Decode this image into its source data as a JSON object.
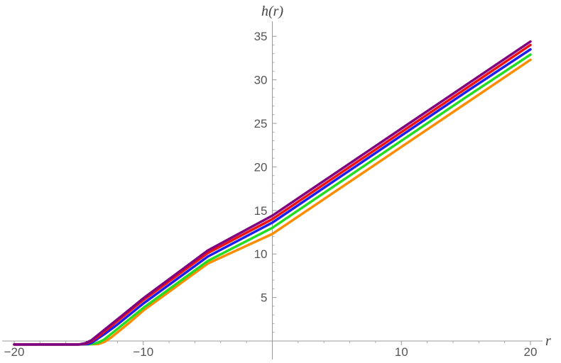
{
  "chart_data": {
    "type": "line",
    "title": "",
    "xlabel": "r",
    "ylabel": "h(r)",
    "xlim": [
      -20,
      20
    ],
    "ylim": [
      -0.5,
      36
    ],
    "x_ticks": [
      -20,
      -10,
      10,
      20
    ],
    "x_tick_labels": [
      "−20",
      "−10",
      "10",
      "20"
    ],
    "y_ticks": [
      5,
      10,
      15,
      20,
      25,
      30,
      35
    ],
    "y_tick_labels": [
      "5",
      "10",
      "15",
      "20",
      "25",
      "30",
      "35"
    ],
    "grid": false,
    "series": [
      {
        "color": "#FF8C00",
        "x": [
          -20,
          -15,
          -13.5,
          -13,
          -12.5,
          -12,
          -11,
          -10,
          -5,
          0,
          5,
          10,
          15,
          20
        ],
        "y": [
          -0.4,
          -0.4,
          -0.35,
          -0.1,
          0.4,
          1.0,
          2.2,
          3.5,
          8.9,
          12.3,
          17.3,
          22.3,
          27.3,
          32.3
        ]
      },
      {
        "color": "#22DD22",
        "x": [
          -20,
          -15,
          -14,
          -13.5,
          -13,
          -12.5,
          -12,
          -11,
          -10,
          -5,
          0,
          5,
          10,
          15,
          20
        ],
        "y": [
          -0.4,
          -0.4,
          -0.35,
          -0.2,
          0.2,
          0.8,
          1.4,
          2.6,
          3.8,
          9.2,
          13.0,
          18.0,
          23.0,
          28.0,
          32.9
        ]
      },
      {
        "color": "#1E1EEE",
        "x": [
          -20,
          -15,
          -14.3,
          -14,
          -13.5,
          -13,
          -12,
          -11,
          -10,
          -5,
          0,
          5,
          10,
          15,
          20
        ],
        "y": [
          -0.4,
          -0.4,
          -0.35,
          -0.2,
          0.3,
          0.8,
          1.9,
          3.1,
          4.3,
          9.7,
          13.6,
          18.6,
          23.6,
          28.6,
          33.5
        ]
      },
      {
        "color": "#EE1111",
        "x": [
          -20,
          -15,
          -14.5,
          -14,
          -13.5,
          -13,
          -12,
          -11,
          -10,
          -5,
          0,
          5,
          10,
          15,
          20
        ],
        "y": [
          -0.4,
          -0.4,
          -0.3,
          0.0,
          0.5,
          1.1,
          2.3,
          3.5,
          4.7,
          10.1,
          14.0,
          19.0,
          24.0,
          29.0,
          34.0
        ]
      },
      {
        "color": "#800080",
        "x": [
          -20,
          -15,
          -14.5,
          -14,
          -13.5,
          -13,
          -12,
          -11,
          -10,
          -5,
          0,
          5,
          10,
          15,
          20
        ],
        "y": [
          -0.4,
          -0.4,
          -0.25,
          0.1,
          0.7,
          1.3,
          2.5,
          3.7,
          4.9,
          10.4,
          14.4,
          19.4,
          24.4,
          29.4,
          34.4
        ]
      }
    ]
  }
}
